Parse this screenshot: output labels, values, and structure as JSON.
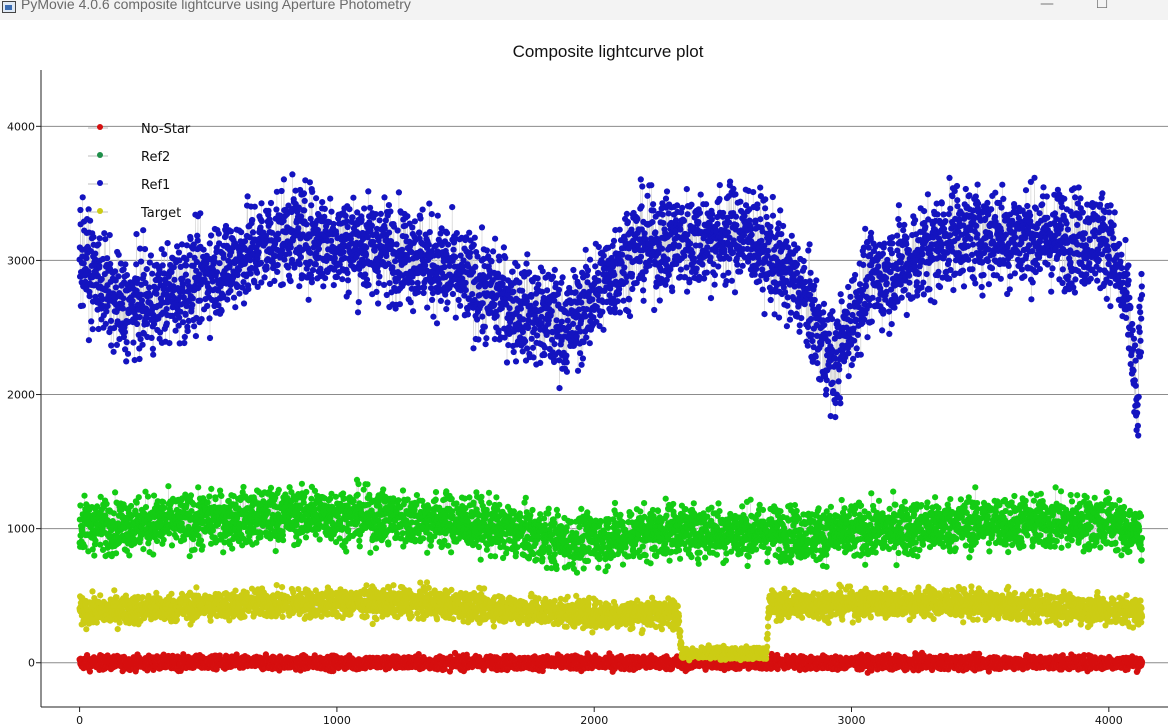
{
  "window": {
    "title": "PyMovie 4.0.6 composite lightcurve using Aperture Photometry",
    "minimize_glyph": "—",
    "maximize_glyph": "☐",
    "icon": "app-icon"
  },
  "chart_data": {
    "type": "scatter",
    "title": "Composite lightcurve plot",
    "xlabel": "",
    "ylabel": "",
    "xlim": [
      -150,
      4230
    ],
    "ylim": [
      -330,
      4420
    ],
    "x_ticks": [
      0,
      1000,
      2000,
      3000,
      4000
    ],
    "y_ticks": [
      0,
      1000,
      2000,
      3000,
      4000
    ],
    "grid": "horizontal lines at y ticks",
    "legend_placement": "top-left",
    "connected_by_lines": true,
    "n_points_per_series": 4130,
    "occultation": {
      "series": "Target",
      "start_x": 2340,
      "end_x": 2670,
      "level": 70
    },
    "series": [
      {
        "name": "No-Star",
        "color": "#d60f0f",
        "legend_marker": "#d60f0f",
        "profile": [
          [
            0,
            0
          ],
          [
            4130,
            0
          ]
        ],
        "scatter": 45
      },
      {
        "name": "Ref2",
        "color": "#14cc14",
        "legend_marker": "#1f8f4a",
        "profile": [
          [
            0,
            1020
          ],
          [
            400,
            1050
          ],
          [
            900,
            1110
          ],
          [
            1500,
            1050
          ],
          [
            1900,
            900
          ],
          [
            2300,
            990
          ],
          [
            2900,
            960
          ],
          [
            3500,
            1040
          ],
          [
            4000,
            1050
          ],
          [
            4130,
            950
          ]
        ],
        "scatter": 180
      },
      {
        "name": "Ref1",
        "color": "#1414c0",
        "legend_marker": "#1414c0",
        "profile": [
          [
            0,
            3050
          ],
          [
            150,
            2650
          ],
          [
            300,
            2700
          ],
          [
            800,
            3200
          ],
          [
            1300,
            3050
          ],
          [
            1700,
            2650
          ],
          [
            1900,
            2500
          ],
          [
            2150,
            3100
          ],
          [
            2600,
            3200
          ],
          [
            2800,
            2800
          ],
          [
            2930,
            2200
          ],
          [
            3050,
            2800
          ],
          [
            3400,
            3200
          ],
          [
            4000,
            3150
          ],
          [
            4080,
            2600
          ],
          [
            4110,
            1800
          ],
          [
            4130,
            2900
          ]
        ],
        "scatter": 330
      },
      {
        "name": "Target",
        "color": "#cccc14",
        "legend_marker": "#cccc14",
        "profile": [
          [
            0,
            380
          ],
          [
            700,
            440
          ],
          [
            1300,
            450
          ],
          [
            2000,
            360
          ],
          [
            2330,
            370
          ],
          [
            2340,
            70
          ],
          [
            2670,
            70
          ],
          [
            2680,
            430
          ],
          [
            3300,
            450
          ],
          [
            4130,
            380
          ]
        ],
        "scatter": 95
      }
    ]
  }
}
